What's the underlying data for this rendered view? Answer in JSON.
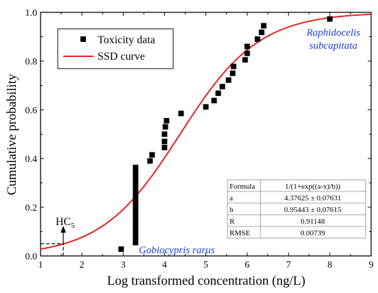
{
  "chart_data": {
    "type": "scatter",
    "xlabel": "Log transformed concentration (ng/L)",
    "ylabel": "Cumulative probability",
    "xlim": [
      1,
      9
    ],
    "ylim": [
      0,
      1
    ],
    "x_ticks": [
      "1",
      "2",
      "3",
      "4",
      "5",
      "6",
      "7",
      "8",
      "9"
    ],
    "y_ticks": [
      "0.0",
      "0.2",
      "0.4",
      "0.6",
      "0.8",
      "1.0"
    ],
    "grid": false,
    "legend_position": "top-left",
    "legend": [
      {
        "label": "Toxicity data",
        "marker": "square",
        "color": "#000000"
      },
      {
        "label": "SSD curve",
        "marker": "line",
        "color": "#e8201f"
      }
    ],
    "series": [
      {
        "name": "Toxicity data",
        "kind": "scatter",
        "color": "#000000",
        "points": [
          [
            2.95,
            0.028
          ],
          [
            3.3,
            0.055
          ],
          [
            3.3,
            0.077
          ],
          [
            3.3,
            0.099
          ],
          [
            3.3,
            0.121
          ],
          [
            3.3,
            0.143
          ],
          [
            3.3,
            0.165
          ],
          [
            3.3,
            0.187
          ],
          [
            3.3,
            0.209
          ],
          [
            3.3,
            0.231
          ],
          [
            3.3,
            0.253
          ],
          [
            3.3,
            0.275
          ],
          [
            3.3,
            0.297
          ],
          [
            3.3,
            0.319
          ],
          [
            3.3,
            0.341
          ],
          [
            3.3,
            0.363
          ],
          [
            3.65,
            0.39
          ],
          [
            3.7,
            0.415
          ],
          [
            4.0,
            0.445
          ],
          [
            4.0,
            0.47
          ],
          [
            4.0,
            0.5
          ],
          [
            4.02,
            0.53
          ],
          [
            4.05,
            0.555
          ],
          [
            4.4,
            0.585
          ],
          [
            5.0,
            0.612
          ],
          [
            5.2,
            0.638
          ],
          [
            5.3,
            0.668
          ],
          [
            5.4,
            0.695
          ],
          [
            5.55,
            0.722
          ],
          [
            5.65,
            0.75
          ],
          [
            5.67,
            0.778
          ],
          [
            5.95,
            0.805
          ],
          [
            6.0,
            0.832
          ],
          [
            6.0,
            0.86
          ],
          [
            6.25,
            0.89
          ],
          [
            6.35,
            0.918
          ],
          [
            6.4,
            0.945
          ],
          [
            8.0,
            0.973
          ]
        ]
      },
      {
        "name": "SSD curve",
        "kind": "line",
        "color": "#e8201f",
        "formula": "1/(1+exp((a-x)/b))",
        "a": 4.37625,
        "b": 0.95443
      }
    ],
    "annotations": [
      {
        "text": "Raphidocelis subcapitata",
        "lines": [
          "Raphidocelis",
          "subcapitata"
        ],
        "color": "#1a3fd6",
        "x": 8.6,
        "y": 0.95
      },
      {
        "text": "Gobiocypris rarus",
        "color": "#1a3fd6",
        "x": 4.3,
        "y": 0.02
      },
      {
        "text": "HC5",
        "main": "HC",
        "sub": "5",
        "color": "#000000",
        "x": 1.55,
        "y": 0.055
      }
    ],
    "hc5": {
      "x": 1.55,
      "y": 0.05
    },
    "table": {
      "rows": [
        [
          "Formula",
          "1/(1+exp((a-x)/b))"
        ],
        [
          "a",
          "4.37625 ± 0.07631"
        ],
        [
          "b",
          "0.95443 ± 0.07615"
        ],
        [
          "R",
          "0.91148"
        ],
        [
          "RMSE",
          "0.00739"
        ]
      ]
    }
  }
}
